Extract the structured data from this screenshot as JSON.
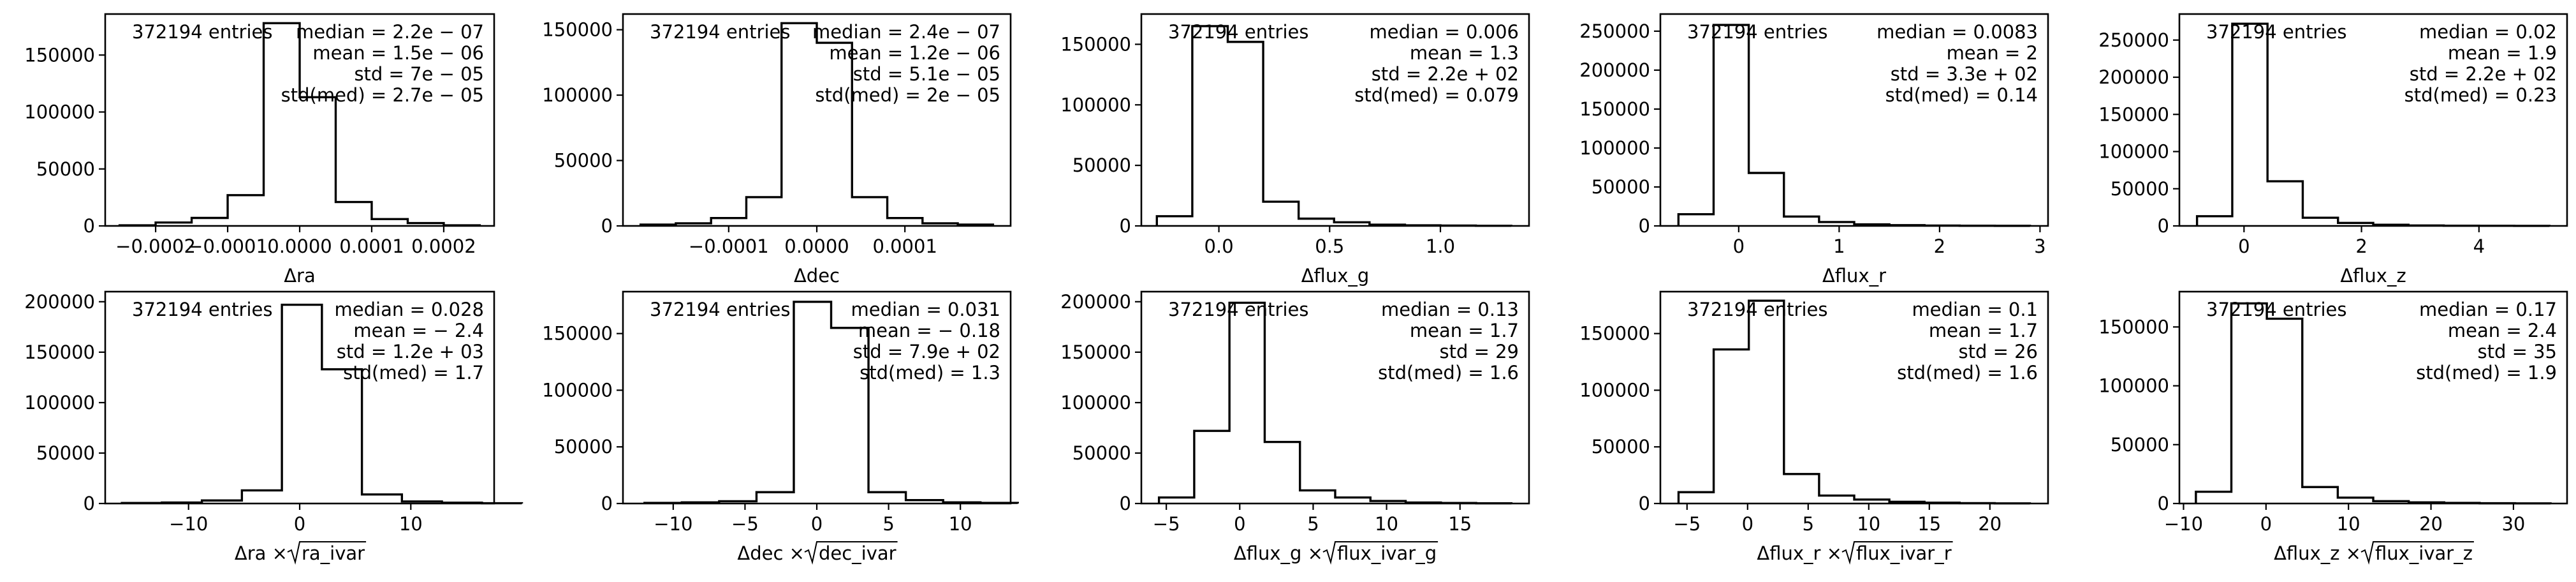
{
  "chart_data": [
    {
      "type": "histogram",
      "title": "",
      "xlabel": "Δra",
      "xlabel_sqrt": "",
      "ylabel": "",
      "x": [
        -0.00025,
        -0.0002,
        -0.00015,
        -0.0001,
        -5e-05,
        0,
        5e-05,
        0.0001,
        0.00015,
        0.0002,
        0.00025
      ],
      "counts": [
        500,
        3000,
        7000,
        27000,
        178000,
        113000,
        21000,
        6000,
        2500,
        500
      ],
      "xlim": [
        -0.00027,
        0.00027
      ],
      "ylim": [
        0,
        186000
      ],
      "xticks": [
        -0.0002,
        -0.0001,
        0,
        0.0001,
        0.0002
      ],
      "xtick_labels": [
        "−0.0002",
        "−0.0001",
        "0.0000",
        "0.0001",
        "0.0002"
      ],
      "yticks": [
        0,
        50000,
        100000,
        150000
      ],
      "ytick_labels": [
        "0",
        "50000",
        "100000",
        "150000"
      ],
      "entries_text": "372194 entries",
      "stats": [
        "median = 2.2e − 07",
        "mean = 1.5e − 06",
        "std = 7e − 05",
        "std(med) = 2.7e − 05"
      ]
    },
    {
      "type": "histogram",
      "title": "",
      "xlabel": "Δdec",
      "xlabel_sqrt": "",
      "ylabel": "",
      "x": [
        -0.0002,
        -0.00016,
        -0.00012,
        -8e-05,
        -4e-05,
        0,
        4e-05,
        8e-05,
        0.00012,
        0.00016,
        0.0002
      ],
      "counts": [
        1000,
        2000,
        6000,
        22000,
        155000,
        140000,
        22000,
        6000,
        2000,
        1000
      ],
      "xlim": [
        -0.00022,
        0.00022
      ],
      "ylim": [
        0,
        162000
      ],
      "xticks": [
        -0.0001,
        0,
        0.0001
      ],
      "xtick_labels": [
        "−0.0001",
        "0.0000",
        "0.0001"
      ],
      "yticks": [
        0,
        50000,
        100000,
        150000
      ],
      "ytick_labels": [
        "0",
        "50000",
        "100000",
        "150000"
      ],
      "entries_text": "372194 entries",
      "stats": [
        "median = 2.4e − 07",
        "mean = 1.2e − 06",
        "std = 5.1e − 05",
        "std(med) = 2e − 05"
      ]
    },
    {
      "type": "histogram",
      "title": "",
      "xlabel": "Δflux_g",
      "xlabel_sqrt": "",
      "ylabel": "",
      "x": [
        -0.28,
        -0.12,
        0.04,
        0.2,
        0.36,
        0.52,
        0.68,
        0.84,
        1,
        1.16,
        1.32
      ],
      "counts": [
        8000,
        165000,
        152000,
        20000,
        6000,
        3000,
        1000,
        500,
        300,
        100
      ],
      "xlim": [
        -0.35,
        1.4
      ],
      "ylim": [
        0,
        175000
      ],
      "xticks": [
        0,
        0.5,
        1
      ],
      "xtick_labels": [
        "0.0",
        "0.5",
        "1.0"
      ],
      "yticks": [
        0,
        50000,
        100000,
        150000
      ],
      "ytick_labels": [
        "0",
        "50000",
        "100000",
        "150000"
      ],
      "entries_text": "372194 entries",
      "stats": [
        "median = 0.006",
        "mean = 1.3",
        "std = 2.2e + 02",
        "std(med) = 0.079"
      ]
    },
    {
      "type": "histogram",
      "title": "",
      "xlabel": "Δflux_r",
      "xlabel_sqrt": "",
      "ylabel": "",
      "x": [
        -0.6,
        -0.25,
        0.1,
        0.45,
        0.8,
        1.15,
        1.5,
        1.85,
        2.2,
        2.55,
        2.9
      ],
      "counts": [
        15000,
        258000,
        68000,
        12000,
        5000,
        2000,
        1000,
        500,
        200,
        100
      ],
      "xlim": [
        -0.78,
        3.08
      ],
      "ylim": [
        0,
        272000
      ],
      "xticks": [
        0,
        1,
        2,
        3
      ],
      "xtick_labels": [
        "0",
        "1",
        "2",
        "3"
      ],
      "yticks": [
        0,
        50000,
        100000,
        150000,
        200000,
        250000
      ],
      "ytick_labels": [
        "0",
        "50000",
        "100000",
        "150000",
        "200000",
        "250000"
      ],
      "entries_text": "372194 entries",
      "stats": [
        "median = 0.0083",
        "mean = 2",
        "std = 3.3e + 02",
        "std(med) = 0.14"
      ]
    },
    {
      "type": "histogram",
      "title": "",
      "xlabel": "Δflux_z",
      "xlabel_sqrt": "",
      "ylabel": "",
      "x": [
        -0.8,
        -0.2,
        0.4,
        1,
        1.6,
        2.2,
        2.8,
        3.4,
        4,
        4.6,
        5.2
      ],
      "counts": [
        13000,
        272000,
        60000,
        11000,
        4000,
        1500,
        600,
        300,
        150,
        80
      ],
      "xlim": [
        -1.1,
        5.5
      ],
      "ylim": [
        0,
        285000
      ],
      "xticks": [
        0,
        2,
        4
      ],
      "xtick_labels": [
        "0",
        "2",
        "4"
      ],
      "yticks": [
        0,
        50000,
        100000,
        150000,
        200000,
        250000
      ],
      "ytick_labels": [
        "0",
        "50000",
        "100000",
        "150000",
        "200000",
        "250000"
      ],
      "entries_text": "372194 entries",
      "stats": [
        "median = 0.02",
        "mean = 1.9",
        "std = 2.2e + 02",
        "std(med) = 0.23"
      ]
    },
    {
      "type": "histogram",
      "title": "",
      "xlabel": "Δra × ",
      "xlabel_sqrt": "ra_ivar",
      "ylabel": "",
      "x": [
        -16,
        -12.4,
        -8.8,
        -5.2,
        -1.6,
        2,
        5.6,
        9.2,
        12.8,
        16.4,
        20
      ],
      "counts": [
        500,
        1000,
        3000,
        13000,
        197000,
        133000,
        9000,
        2000,
        800,
        300
      ],
      "xlim": [
        -17.5,
        17.5
      ],
      "ylim": [
        0,
        210000
      ],
      "xticks": [
        -10,
        0,
        10
      ],
      "xtick_labels": [
        "−10",
        "0",
        "10"
      ],
      "yticks": [
        0,
        50000,
        100000,
        150000,
        200000
      ],
      "ytick_labels": [
        "0",
        "50000",
        "100000",
        "150000",
        "200000"
      ],
      "entries_text": "372194 entries",
      "stats": [
        "median = 0.028",
        "mean = − 2.4",
        "std = 1.2e + 03",
        "std(med) = 1.7"
      ]
    },
    {
      "type": "histogram",
      "title": "",
      "xlabel": "Δdec × ",
      "xlabel_sqrt": "dec_ivar",
      "ylabel": "",
      "x": [
        -12,
        -9.4,
        -6.8,
        -4.2,
        -1.6,
        1,
        3.6,
        6.2,
        8.8,
        11.4,
        14
      ],
      "counts": [
        500,
        1000,
        2000,
        10000,
        178000,
        155000,
        10000,
        3000,
        1000,
        500
      ],
      "xlim": [
        -13.5,
        13.5
      ],
      "ylim": [
        0,
        187000
      ],
      "xticks": [
        -10,
        -5,
        0,
        5,
        10
      ],
      "xtick_labels": [
        "−10",
        "−5",
        "0",
        "5",
        "10"
      ],
      "yticks": [
        0,
        50000,
        100000,
        150000
      ],
      "ytick_labels": [
        "0",
        "50000",
        "100000",
        "150000"
      ],
      "entries_text": "372194 entries",
      "stats": [
        "median = 0.031",
        "mean = − 0.18",
        "std = 7.9e + 02",
        "std(med) = 1.3"
      ]
    },
    {
      "type": "histogram",
      "title": "",
      "xlabel": "Δflux_g × ",
      "xlabel_sqrt": "flux_ivar_g",
      "ylabel": "",
      "x": [
        -5.5,
        -3.1,
        -0.7,
        1.7,
        4.1,
        6.5,
        8.9,
        11.3,
        13.7,
        16.1,
        18.5
      ],
      "counts": [
        6000,
        72000,
        199000,
        61000,
        13000,
        6000,
        2500,
        1000,
        500,
        200
      ],
      "xlim": [
        -6.7,
        19.7
      ],
      "ylim": [
        0,
        210000
      ],
      "xticks": [
        -5,
        0,
        5,
        10,
        15
      ],
      "xtick_labels": [
        "−5",
        "0",
        "5",
        "10",
        "15"
      ],
      "yticks": [
        0,
        50000,
        100000,
        150000,
        200000
      ],
      "ytick_labels": [
        "0",
        "50000",
        "100000",
        "150000",
        "200000"
      ],
      "entries_text": "372194 entries",
      "stats": [
        "median = 0.13",
        "mean = 1.7",
        "std = 29",
        "std(med) = 1.6"
      ]
    },
    {
      "type": "histogram",
      "title": "",
      "xlabel": "Δflux_r × ",
      "xlabel_sqrt": "flux_ivar_r",
      "ylabel": "",
      "x": [
        -5.7,
        -2.8,
        0.1,
        3,
        5.9,
        8.8,
        11.7,
        14.6,
        17.5,
        20.4,
        23.3
      ],
      "counts": [
        10000,
        136000,
        179000,
        26000,
        7000,
        3500,
        1500,
        700,
        300,
        100
      ],
      "xlim": [
        -7.2,
        24.8
      ],
      "ylim": [
        0,
        187000
      ],
      "xticks": [
        -5,
        0,
        5,
        10,
        15,
        20
      ],
      "xtick_labels": [
        "−5",
        "0",
        "5",
        "10",
        "15",
        "20"
      ],
      "yticks": [
        0,
        50000,
        100000,
        150000
      ],
      "ytick_labels": [
        "0",
        "50000",
        "100000",
        "150000"
      ],
      "entries_text": "372194 entries",
      "stats": [
        "median = 0.1",
        "mean = 1.7",
        "std = 26",
        "std(med) = 1.6"
      ]
    },
    {
      "type": "histogram",
      "title": "",
      "xlabel": "Δflux_z × ",
      "xlabel_sqrt": "flux_ivar_z",
      "ylabel": "",
      "x": [
        -8.5,
        -4.2,
        0.1,
        4.4,
        8.7,
        13,
        17.3,
        21.6,
        25.9,
        30.2,
        34.5
      ],
      "counts": [
        10000,
        170000,
        157000,
        14000,
        5000,
        2000,
        1000,
        500,
        200,
        100
      ],
      "xlim": [
        -10.5,
        36.5
      ],
      "ylim": [
        0,
        180000
      ],
      "xticks": [
        -10,
        0,
        10,
        20,
        30
      ],
      "xtick_labels": [
        "−10",
        "0",
        "10",
        "20",
        "30"
      ],
      "yticks": [
        0,
        50000,
        100000,
        150000
      ],
      "ytick_labels": [
        "0",
        "50000",
        "100000",
        "150000"
      ],
      "entries_text": "372194 entries",
      "stats": [
        "median = 0.17",
        "mean = 2.4",
        "std = 35",
        "std(med) = 1.9"
      ]
    }
  ]
}
